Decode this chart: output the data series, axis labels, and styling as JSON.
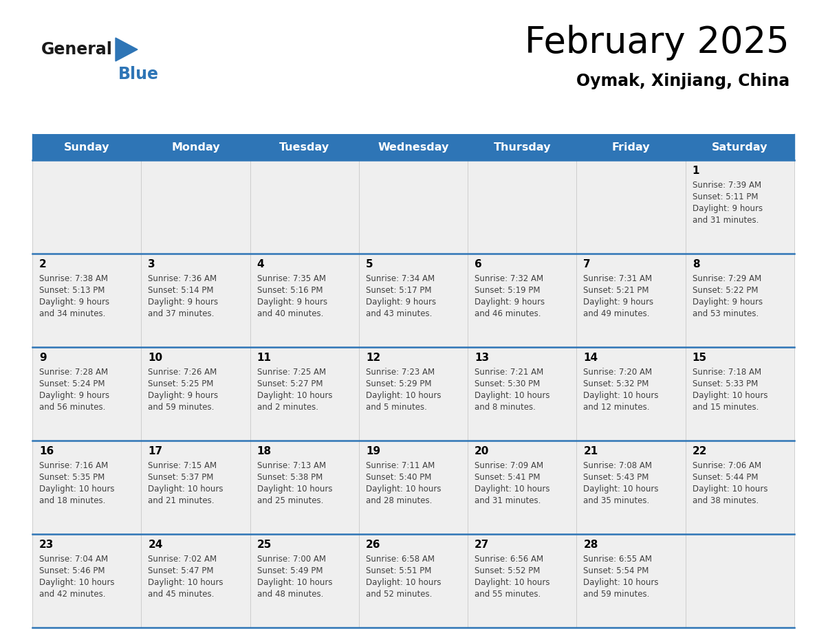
{
  "title": "February 2025",
  "subtitle": "Oymak, Xinjiang, China",
  "header_color": "#2E75B6",
  "header_text_color": "#FFFFFF",
  "day_names": [
    "Sunday",
    "Monday",
    "Tuesday",
    "Wednesday",
    "Thursday",
    "Friday",
    "Saturday"
  ],
  "background_color": "#FFFFFF",
  "cell_bg": "#EFEFEF",
  "cell_bg_white": "#FFFFFF",
  "separator_color": "#2E75B6",
  "day_number_color": "#000000",
  "text_color": "#404040",
  "logo_general_color": "#1a1a1a",
  "logo_blue_color": "#2E75B6",
  "logo_triangle_color": "#2E75B6",
  "calendar_data": [
    [
      null,
      null,
      null,
      null,
      null,
      null,
      {
        "day": 1,
        "sunrise": "7:39 AM",
        "sunset": "5:11 PM",
        "daylight": "9 hours and 31 minutes."
      }
    ],
    [
      {
        "day": 2,
        "sunrise": "7:38 AM",
        "sunset": "5:13 PM",
        "daylight": "9 hours and 34 minutes."
      },
      {
        "day": 3,
        "sunrise": "7:36 AM",
        "sunset": "5:14 PM",
        "daylight": "9 hours and 37 minutes."
      },
      {
        "day": 4,
        "sunrise": "7:35 AM",
        "sunset": "5:16 PM",
        "daylight": "9 hours and 40 minutes."
      },
      {
        "day": 5,
        "sunrise": "7:34 AM",
        "sunset": "5:17 PM",
        "daylight": "9 hours and 43 minutes."
      },
      {
        "day": 6,
        "sunrise": "7:32 AM",
        "sunset": "5:19 PM",
        "daylight": "9 hours and 46 minutes."
      },
      {
        "day": 7,
        "sunrise": "7:31 AM",
        "sunset": "5:21 PM",
        "daylight": "9 hours and 49 minutes."
      },
      {
        "day": 8,
        "sunrise": "7:29 AM",
        "sunset": "5:22 PM",
        "daylight": "9 hours and 53 minutes."
      }
    ],
    [
      {
        "day": 9,
        "sunrise": "7:28 AM",
        "sunset": "5:24 PM",
        "daylight": "9 hours and 56 minutes."
      },
      {
        "day": 10,
        "sunrise": "7:26 AM",
        "sunset": "5:25 PM",
        "daylight": "9 hours and 59 minutes."
      },
      {
        "day": 11,
        "sunrise": "7:25 AM",
        "sunset": "5:27 PM",
        "daylight": "10 hours and 2 minutes."
      },
      {
        "day": 12,
        "sunrise": "7:23 AM",
        "sunset": "5:29 PM",
        "daylight": "10 hours and 5 minutes."
      },
      {
        "day": 13,
        "sunrise": "7:21 AM",
        "sunset": "5:30 PM",
        "daylight": "10 hours and 8 minutes."
      },
      {
        "day": 14,
        "sunrise": "7:20 AM",
        "sunset": "5:32 PM",
        "daylight": "10 hours and 12 minutes."
      },
      {
        "day": 15,
        "sunrise": "7:18 AM",
        "sunset": "5:33 PM",
        "daylight": "10 hours and 15 minutes."
      }
    ],
    [
      {
        "day": 16,
        "sunrise": "7:16 AM",
        "sunset": "5:35 PM",
        "daylight": "10 hours and 18 minutes."
      },
      {
        "day": 17,
        "sunrise": "7:15 AM",
        "sunset": "5:37 PM",
        "daylight": "10 hours and 21 minutes."
      },
      {
        "day": 18,
        "sunrise": "7:13 AM",
        "sunset": "5:38 PM",
        "daylight": "10 hours and 25 minutes."
      },
      {
        "day": 19,
        "sunrise": "7:11 AM",
        "sunset": "5:40 PM",
        "daylight": "10 hours and 28 minutes."
      },
      {
        "day": 20,
        "sunrise": "7:09 AM",
        "sunset": "5:41 PM",
        "daylight": "10 hours and 31 minutes."
      },
      {
        "day": 21,
        "sunrise": "7:08 AM",
        "sunset": "5:43 PM",
        "daylight": "10 hours and 35 minutes."
      },
      {
        "day": 22,
        "sunrise": "7:06 AM",
        "sunset": "5:44 PM",
        "daylight": "10 hours and 38 minutes."
      }
    ],
    [
      {
        "day": 23,
        "sunrise": "7:04 AM",
        "sunset": "5:46 PM",
        "daylight": "10 hours and 42 minutes."
      },
      {
        "day": 24,
        "sunrise": "7:02 AM",
        "sunset": "5:47 PM",
        "daylight": "10 hours and 45 minutes."
      },
      {
        "day": 25,
        "sunrise": "7:00 AM",
        "sunset": "5:49 PM",
        "daylight": "10 hours and 48 minutes."
      },
      {
        "day": 26,
        "sunrise": "6:58 AM",
        "sunset": "5:51 PM",
        "daylight": "10 hours and 52 minutes."
      },
      {
        "day": 27,
        "sunrise": "6:56 AM",
        "sunset": "5:52 PM",
        "daylight": "10 hours and 55 minutes."
      },
      {
        "day": 28,
        "sunrise": "6:55 AM",
        "sunset": "5:54 PM",
        "daylight": "10 hours and 59 minutes."
      },
      null
    ]
  ]
}
